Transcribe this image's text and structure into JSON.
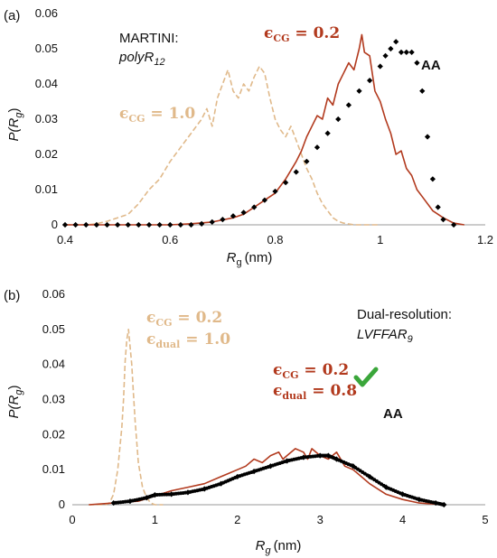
{
  "chart_data": [
    {
      "type": "line",
      "panel_label": "(a)",
      "annotation_lines": [
        "MARTINI:",
        "polyR12"
      ],
      "xlabel_main": "R",
      "xlabel_sub": "g",
      "xlabel_unit": "(nm)",
      "ylabel_main": "P(R",
      "ylabel_sub": "g",
      "ylabel_end": ")",
      "xlim": [
        0.4,
        1.2
      ],
      "ylim": [
        0,
        0.06
      ],
      "xticks": [
        "0.4",
        "0.6",
        "0.8",
        "1",
        "1.2"
      ],
      "yticks": [
        "0",
        "0.01",
        "0.02",
        "0.03",
        "0.04",
        "0.05",
        "0.06"
      ],
      "grid": false,
      "series": [
        {
          "name": "ϵCG = 1.0",
          "style": "dashed",
          "color": "#e0b98a",
          "x": [
            0.4,
            0.42,
            0.44,
            0.46,
            0.48,
            0.5,
            0.52,
            0.54,
            0.56,
            0.58,
            0.6,
            0.62,
            0.64,
            0.66,
            0.67,
            0.68,
            0.69,
            0.7,
            0.71,
            0.72,
            0.73,
            0.74,
            0.75,
            0.76,
            0.77,
            0.78,
            0.79,
            0.8,
            0.81,
            0.82,
            0.83,
            0.84,
            0.85,
            0.86,
            0.87,
            0.88,
            0.89,
            0.9,
            0.91,
            0.92,
            0.93,
            0.95,
            1.0
          ],
          "y": [
            0,
            0,
            0,
            0.0003,
            0.001,
            0.002,
            0.003,
            0.006,
            0.01,
            0.013,
            0.018,
            0.022,
            0.026,
            0.03,
            0.033,
            0.028,
            0.036,
            0.04,
            0.044,
            0.038,
            0.036,
            0.04,
            0.038,
            0.042,
            0.045,
            0.043,
            0.036,
            0.03,
            0.027,
            0.025,
            0.028,
            0.024,
            0.02,
            0.016,
            0.013,
            0.009,
            0.006,
            0.004,
            0.002,
            0.001,
            0.0005,
            0,
            0
          ]
        },
        {
          "name": "ϵCG = 0.2",
          "style": "solid",
          "color": "#b23a1e",
          "x": [
            0.4,
            0.5,
            0.6,
            0.64,
            0.68,
            0.72,
            0.74,
            0.76,
            0.78,
            0.8,
            0.82,
            0.84,
            0.85,
            0.86,
            0.87,
            0.88,
            0.89,
            0.9,
            0.91,
            0.92,
            0.93,
            0.94,
            0.95,
            0.96,
            0.965,
            0.97,
            0.98,
            0.99,
            1.0,
            1.01,
            1.02,
            1.03,
            1.04,
            1.05,
            1.06,
            1.07,
            1.08,
            1.1,
            1.12,
            1.14,
            1.16
          ],
          "y": [
            0,
            0,
            0,
            0.0003,
            0.0008,
            0.002,
            0.003,
            0.005,
            0.007,
            0.009,
            0.013,
            0.018,
            0.021,
            0.025,
            0.028,
            0.031,
            0.03,
            0.036,
            0.034,
            0.04,
            0.043,
            0.046,
            0.044,
            0.05,
            0.054,
            0.049,
            0.048,
            0.038,
            0.035,
            0.03,
            0.026,
            0.02,
            0.021,
            0.016,
            0.014,
            0.01,
            0.008,
            0.004,
            0.002,
            0.0005,
            0
          ]
        },
        {
          "name": "AA",
          "style": "dotted",
          "color": "#000000",
          "x": [
            0.4,
            0.42,
            0.44,
            0.46,
            0.48,
            0.5,
            0.52,
            0.54,
            0.56,
            0.58,
            0.6,
            0.62,
            0.64,
            0.66,
            0.68,
            0.7,
            0.72,
            0.74,
            0.76,
            0.78,
            0.8,
            0.82,
            0.84,
            0.86,
            0.88,
            0.9,
            0.92,
            0.94,
            0.96,
            0.98,
            1.0,
            1.01,
            1.02,
            1.03,
            1.04,
            1.05,
            1.06,
            1.07,
            1.08,
            1.09,
            1.1,
            1.11,
            1.12,
            1.14
          ],
          "y": [
            0,
            0,
            0,
            0,
            0,
            0,
            0,
            0,
            0,
            0,
            0,
            0,
            0,
            0.0003,
            0.0008,
            0.0015,
            0.0025,
            0.0035,
            0.005,
            0.007,
            0.0095,
            0.012,
            0.015,
            0.018,
            0.022,
            0.026,
            0.03,
            0.034,
            0.038,
            0.041,
            0.045,
            0.048,
            0.05,
            0.052,
            0.049,
            0.049,
            0.049,
            0.046,
            0.038,
            0.025,
            0.013,
            0.005,
            0.0015,
            0
          ]
        }
      ],
      "legend_labels": [
        {
          "series": "ϵCG = 1.0",
          "base": "ϵ",
          "sub": "CG",
          "rest": " = 1.0"
        },
        {
          "series": "ϵCG = 0.2",
          "base": "ϵ",
          "sub": "CG",
          "rest": " = 0.2"
        },
        {
          "series": "AA",
          "text": "AA"
        }
      ]
    },
    {
      "type": "line",
      "panel_label": "(b)",
      "annotation_lines": [
        "Dual-resolution:",
        "LVFFAR9"
      ],
      "xlabel_main": "R",
      "xlabel_sub": "g",
      "xlabel_unit": "(nm)",
      "ylabel_main": "P(R",
      "ylabel_sub": "g",
      "ylabel_end": ")",
      "xlim": [
        0,
        5
      ],
      "ylim": [
        0,
        0.06
      ],
      "xticks": [
        "0",
        "1",
        "2",
        "3",
        "4",
        "5"
      ],
      "yticks": [
        "0",
        "0.01",
        "0.02",
        "0.03",
        "0.04",
        "0.05",
        "0.06"
      ],
      "grid": false,
      "series": [
        {
          "name": "ϵCG = 0.2, ϵdual = 1.0",
          "style": "dashed",
          "color": "#e0b98a",
          "x": [
            0.2,
            0.3,
            0.4,
            0.45,
            0.5,
            0.55,
            0.6,
            0.62,
            0.64,
            0.66,
            0.68,
            0.7,
            0.72,
            0.74,
            0.76,
            0.78,
            0.8,
            0.85,
            0.9,
            0.95,
            1.0,
            1.1
          ],
          "y": [
            0,
            0,
            0,
            0.0005,
            0.003,
            0.01,
            0.022,
            0.03,
            0.041,
            0.047,
            0.05,
            0.045,
            0.04,
            0.032,
            0.024,
            0.018,
            0.012,
            0.005,
            0.002,
            0.0005,
            0,
            0
          ]
        },
        {
          "name": "ϵCG = 0.2, ϵdual = 0.8",
          "style": "solid",
          "color": "#b23a1e",
          "x": [
            0.2,
            0.5,
            0.8,
            1.0,
            1.2,
            1.4,
            1.6,
            1.8,
            2.0,
            2.1,
            2.2,
            2.3,
            2.4,
            2.5,
            2.55,
            2.6,
            2.7,
            2.8,
            2.85,
            2.9,
            3.0,
            3.1,
            3.2,
            3.3,
            3.4,
            3.5,
            3.6,
            3.8,
            4.0,
            4.2,
            4.5
          ],
          "y": [
            0,
            0.0005,
            0.001,
            0.0025,
            0.004,
            0.005,
            0.006,
            0.008,
            0.01,
            0.011,
            0.013,
            0.012,
            0.014,
            0.015,
            0.013,
            0.014,
            0.016,
            0.015,
            0.013,
            0.016,
            0.014,
            0.013,
            0.015,
            0.011,
            0.01,
            0.008,
            0.006,
            0.003,
            0.0015,
            0.0005,
            0
          ]
        },
        {
          "name": "AA",
          "style": "dotted",
          "color": "#000000",
          "x": [
            0.5,
            0.7,
            0.9,
            1.0,
            1.2,
            1.4,
            1.6,
            1.8,
            2.0,
            2.2,
            2.4,
            2.6,
            2.8,
            3.0,
            3.1,
            3.2,
            3.4,
            3.6,
            3.8,
            4.0,
            4.2,
            4.4,
            4.5
          ],
          "y": [
            0.0005,
            0.001,
            0.002,
            0.0028,
            0.003,
            0.0035,
            0.0045,
            0.006,
            0.008,
            0.0095,
            0.011,
            0.0125,
            0.0135,
            0.014,
            0.014,
            0.013,
            0.011,
            0.008,
            0.005,
            0.003,
            0.0015,
            0.0005,
            0
          ]
        }
      ],
      "legend_labels": [
        {
          "series": "ϵCG = 0.2, ϵdual = 1.0",
          "line1": {
            "base": "ϵ",
            "sub": "CG",
            "rest": " = 0.2"
          },
          "line2": {
            "base": "ϵ",
            "sub": "dual",
            "rest": " = 1.0"
          }
        },
        {
          "series": "ϵCG = 0.2, ϵdual = 0.8",
          "line1": {
            "base": "ϵ",
            "sub": "CG",
            "rest": " = 0.2"
          },
          "line2": {
            "base": "ϵ",
            "sub": "dual",
            "rest": " = 0.8"
          }
        },
        {
          "series": "AA",
          "text": "AA"
        }
      ],
      "checkmark_icon": "check-icon",
      "checkmark_color": "#3aa63a"
    }
  ]
}
